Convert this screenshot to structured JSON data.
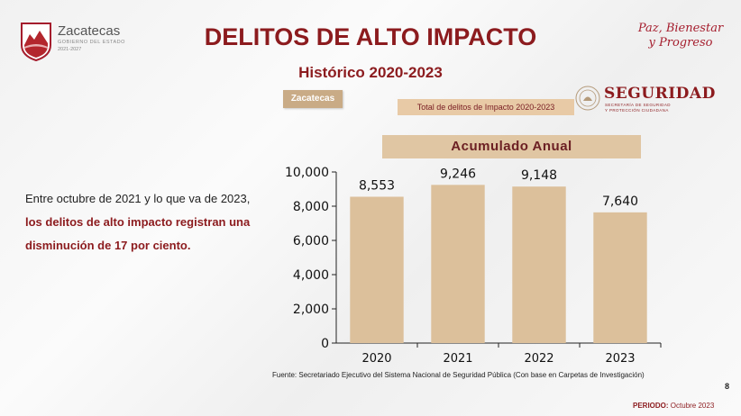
{
  "header": {
    "logo_name": "Zacatecas",
    "logo_subtitle": "GOBIERNO DEL ESTADO",
    "logo_years": "2021-2027",
    "title": "DELITOS DE ALTO IMPACTO",
    "subtitle": "Histórico 2020-2023",
    "slogan_line1": "Paz, Bienestar",
    "slogan_line2": "y Progreso"
  },
  "tags": {
    "state": "Zacatecas",
    "total": "Total de delitos de Impacto 2020-2023"
  },
  "seguridad": {
    "name": "SEGURIDAD",
    "sub1": "SECRETARÍA DE SEGURIDAD",
    "sub2": "Y PROTECCIÓN CIUDADANA"
  },
  "body": {
    "text_plain": "Entre octubre de 2021 y lo que va de 2023, ",
    "text_highlight": "los delitos de alto impacto registran una disminución de 17 por ciento."
  },
  "footer": {
    "source": "Fuente: Secretariado Ejecutivo del Sistema Nacional de Seguridad Pública (Con base en Carpetas de Investigación)",
    "page_number": "8",
    "periodo_label": "PERIODO:",
    "periodo_value": "Octubre 2023"
  },
  "colors": {
    "brand": "#8c1b1e",
    "bar": "#dcc09b"
  },
  "chart_data": {
    "type": "bar",
    "title": "Acumulado Anual",
    "categories": [
      "2020",
      "2021",
      "2022",
      "2023"
    ],
    "values": [
      8553,
      9246,
      9148,
      7640
    ],
    "value_labels": [
      "8,553",
      "9,246",
      "9,148",
      "7,640"
    ],
    "ylim": [
      0,
      10000
    ],
    "yticks": [
      0,
      2000,
      4000,
      6000,
      8000,
      10000
    ],
    "ytick_labels": [
      "0",
      "2,000",
      "4,000",
      "6,000",
      "8,000",
      "10,000"
    ],
    "xlabel": "",
    "ylabel": "",
    "grid": false
  }
}
